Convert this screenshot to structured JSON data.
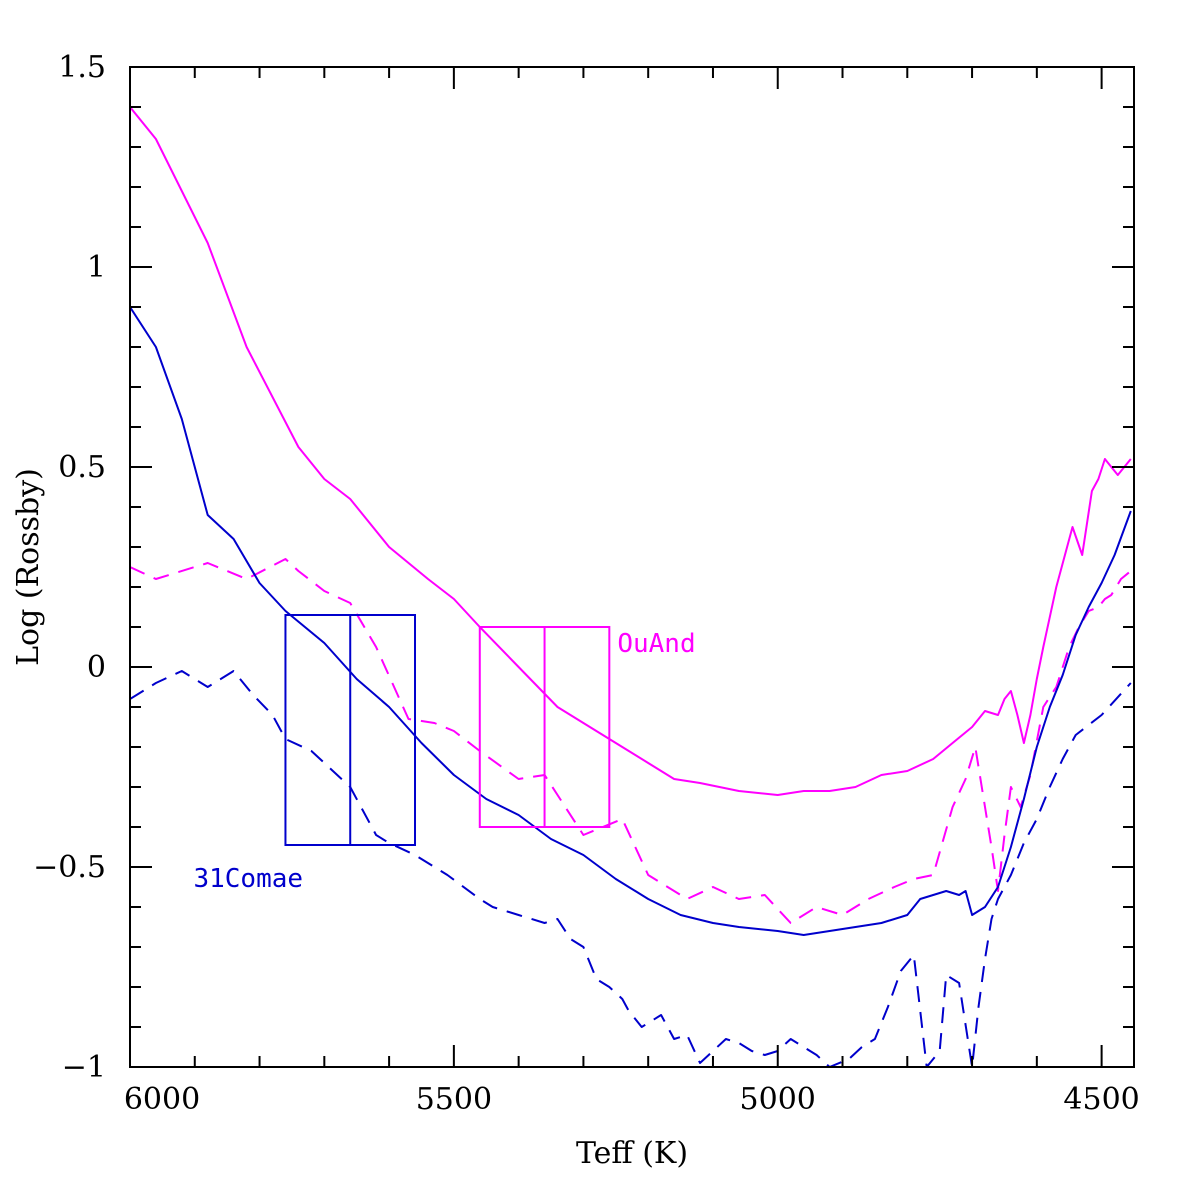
{
  "chart_data": {
    "type": "line",
    "title": "",
    "xlabel": "Teff (K)",
    "ylabel": "Log (Rossby)",
    "xlim": [
      6000,
      4450
    ],
    "ylim": [
      -1,
      1.5
    ],
    "x_ticks": [
      {
        "value": 6000,
        "label": "6000"
      },
      {
        "value": 5500,
        "label": "5500"
      },
      {
        "value": 5000,
        "label": "5000"
      },
      {
        "value": 4500,
        "label": "4500"
      }
    ],
    "y_ticks": [
      {
        "value": 1.5,
        "label": "1.5"
      },
      {
        "value": 1,
        "label": "1"
      },
      {
        "value": 0.5,
        "label": "0.5"
      },
      {
        "value": 0,
        "label": "0"
      },
      {
        "value": -0.5,
        "label": "−0.5"
      },
      {
        "value": -1,
        "label": "−1"
      }
    ],
    "colors": {
      "magenta": "#ff00ff",
      "blue": "#0000cc",
      "axis": "#000000"
    },
    "series": [
      {
        "name": "OuAnd solid",
        "color": "magenta",
        "dash": false,
        "x": [
          6000,
          5960,
          5880,
          5820,
          5740,
          5700,
          5660,
          5600,
          5540,
          5500,
          5460,
          5400,
          5340,
          5300,
          5240,
          5200,
          5160,
          5120,
          5060,
          5000,
          4960,
          4920,
          4880,
          4840,
          4800,
          4760,
          4730,
          4700,
          4680,
          4660,
          4650,
          4640,
          4630,
          4620,
          4610,
          4600,
          4590,
          4570,
          4545,
          4530,
          4515,
          4505,
          4495,
          4485,
          4475,
          4465,
          4455
        ],
        "y": [
          1.4,
          1.32,
          1.06,
          0.8,
          0.55,
          0.47,
          0.42,
          0.3,
          0.22,
          0.17,
          0.1,
          0.0,
          -0.1,
          -0.14,
          -0.2,
          -0.24,
          -0.28,
          -0.29,
          -0.31,
          -0.32,
          -0.31,
          -0.31,
          -0.3,
          -0.27,
          -0.26,
          -0.23,
          -0.19,
          -0.15,
          -0.11,
          -0.12,
          -0.08,
          -0.06,
          -0.12,
          -0.19,
          -0.12,
          -0.03,
          0.05,
          0.2,
          0.35,
          0.28,
          0.44,
          0.47,
          0.52,
          0.5,
          0.48,
          0.5,
          0.52
        ]
      },
      {
        "name": "OuAnd dashed",
        "color": "magenta",
        "dash": true,
        "x": [
          6000,
          5960,
          5880,
          5820,
          5760,
          5740,
          5700,
          5660,
          5620,
          5570,
          5530,
          5500,
          5460,
          5400,
          5360,
          5300,
          5240,
          5200,
          5140,
          5100,
          5060,
          5020,
          4980,
          4940,
          4900,
          4860,
          4820,
          4790,
          4760,
          4730,
          4710,
          4695,
          4680,
          4670,
          4660,
          4650,
          4640,
          4625,
          4610,
          4590,
          4570,
          4550,
          4535,
          4520,
          4505,
          4495,
          4485,
          4470,
          4455
        ],
        "y": [
          0.25,
          0.22,
          0.26,
          0.22,
          0.27,
          0.24,
          0.19,
          0.16,
          0.05,
          -0.13,
          -0.14,
          -0.16,
          -0.21,
          -0.28,
          -0.27,
          -0.42,
          -0.38,
          -0.52,
          -0.58,
          -0.55,
          -0.58,
          -0.57,
          -0.64,
          -0.6,
          -0.62,
          -0.58,
          -0.55,
          -0.53,
          -0.52,
          -0.35,
          -0.28,
          -0.2,
          -0.35,
          -0.45,
          -0.56,
          -0.42,
          -0.3,
          -0.35,
          -0.27,
          -0.1,
          -0.05,
          0.05,
          0.1,
          0.14,
          0.15,
          0.17,
          0.18,
          0.22,
          0.24
        ]
      },
      {
        "name": "31Comae solid",
        "color": "blue",
        "dash": false,
        "x": [
          6000,
          5960,
          5920,
          5880,
          5840,
          5800,
          5760,
          5700,
          5650,
          5600,
          5550,
          5500,
          5450,
          5400,
          5350,
          5300,
          5250,
          5200,
          5150,
          5100,
          5060,
          5000,
          4960,
          4920,
          4880,
          4840,
          4800,
          4780,
          4760,
          4740,
          4720,
          4710,
          4700,
          4680,
          4660,
          4640,
          4620,
          4600,
          4580,
          4560,
          4540,
          4520,
          4500,
          4480,
          4455
        ],
        "y": [
          0.9,
          0.8,
          0.62,
          0.38,
          0.32,
          0.21,
          0.14,
          0.06,
          -0.03,
          -0.1,
          -0.19,
          -0.27,
          -0.33,
          -0.37,
          -0.43,
          -0.47,
          -0.53,
          -0.58,
          -0.62,
          -0.64,
          -0.65,
          -0.66,
          -0.67,
          -0.66,
          -0.65,
          -0.64,
          -0.62,
          -0.58,
          -0.57,
          -0.56,
          -0.57,
          -0.56,
          -0.62,
          -0.6,
          -0.55,
          -0.45,
          -0.33,
          -0.2,
          -0.1,
          -0.02,
          0.08,
          0.15,
          0.21,
          0.28,
          0.39
        ]
      },
      {
        "name": "31Comae dashed",
        "color": "blue",
        "dash": true,
        "x": [
          6000,
          5980,
          5960,
          5920,
          5880,
          5840,
          5810,
          5780,
          5760,
          5720,
          5660,
          5620,
          5600,
          5560,
          5510,
          5460,
          5440,
          5400,
          5360,
          5340,
          5320,
          5300,
          5280,
          5260,
          5240,
          5230,
          5210,
          5180,
          5160,
          5140,
          5120,
          5100,
          5080,
          5060,
          5040,
          5020,
          5000,
          4980,
          4960,
          4940,
          4920,
          4890,
          4870,
          4850,
          4830,
          4810,
          4790,
          4770,
          4750,
          4740,
          4720,
          4700,
          4690,
          4680,
          4670,
          4660,
          4640,
          4620,
          4600,
          4580,
          4560,
          4540,
          4500,
          4455
        ],
        "y": [
          -0.08,
          -0.06,
          -0.04,
          -0.01,
          -0.05,
          -0.01,
          -0.07,
          -0.12,
          -0.18,
          -0.21,
          -0.3,
          -0.42,
          -0.44,
          -0.47,
          -0.52,
          -0.58,
          -0.6,
          -0.62,
          -0.64,
          -0.63,
          -0.68,
          -0.7,
          -0.78,
          -0.8,
          -0.83,
          -0.86,
          -0.9,
          -0.87,
          -0.93,
          -0.92,
          -0.99,
          -0.96,
          -0.93,
          -0.94,
          -0.96,
          -0.97,
          -0.96,
          -0.93,
          -0.95,
          -0.97,
          -1.0,
          -0.98,
          -0.95,
          -0.93,
          -0.85,
          -0.76,
          -0.72,
          -1.0,
          -0.96,
          -0.77,
          -0.79,
          -1.0,
          -0.85,
          -0.73,
          -0.63,
          -0.58,
          -0.52,
          -0.44,
          -0.38,
          -0.3,
          -0.23,
          -0.17,
          -0.12,
          -0.04
        ]
      }
    ],
    "boxes": [
      {
        "name": "31Comae",
        "label": "31Comae",
        "color": "blue",
        "x_min": 5560,
        "x_mid": 5660,
        "x_max": 5760,
        "y_min": -0.445,
        "y_max": 0.13
      },
      {
        "name": "OuAnd",
        "label": "OuAnd",
        "color": "magenta",
        "x_min": 5260,
        "x_mid": 5360,
        "x_max": 5460,
        "y_min": -0.4,
        "y_max": 0.1
      }
    ]
  }
}
